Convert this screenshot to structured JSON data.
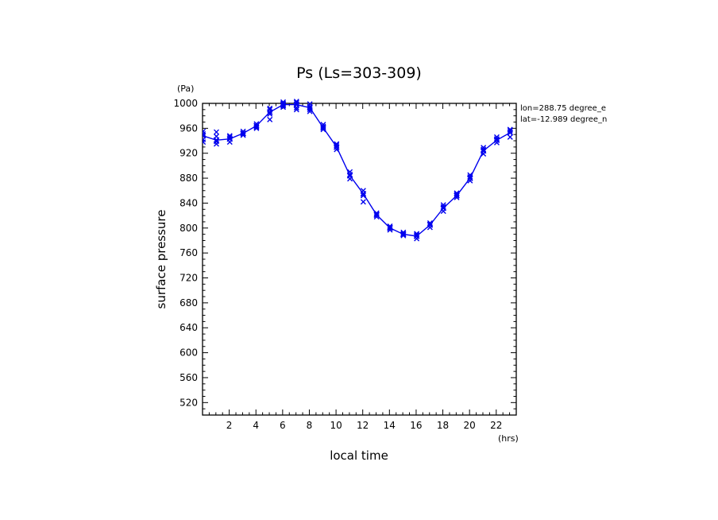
{
  "chart_data": {
    "type": "line",
    "title": "Ps (Ls=303-309)",
    "xlabel": "local time",
    "ylabel": "surface pressure",
    "x_unit": "(hrs)",
    "y_unit": "(Pa)",
    "annotations": [
      "lon=288.75 degree_e",
      "lat=-12.989 degree_n"
    ],
    "xlim": [
      0,
      23.5
    ],
    "ylim": [
      500,
      1000
    ],
    "x_ticks": [
      2,
      4,
      6,
      8,
      10,
      12,
      14,
      16,
      18,
      20,
      22
    ],
    "y_ticks": [
      520,
      560,
      600,
      640,
      680,
      720,
      760,
      800,
      840,
      880,
      920,
      960,
      1000
    ],
    "series": [
      {
        "name": "",
        "color": "#0000ee",
        "marker": "x",
        "x": [
          0.04,
          1.04,
          2.04,
          3.04,
          4.04,
          5.04,
          6.04,
          7.04,
          8.04,
          9.04,
          10.04,
          11.04,
          12.04,
          13.04,
          14.04,
          15.04,
          16.04,
          17.04,
          18.04,
          19.04,
          20.04,
          21.04,
          22.04,
          23.04
        ],
        "values": [
          948,
          941,
          943,
          952,
          964,
          986,
          998,
          998,
          993,
          961,
          930,
          884,
          855,
          821,
          800,
          790,
          787,
          805,
          832,
          852,
          880,
          924,
          941,
          953
        ]
      }
    ],
    "scatter": {
      "marker": "x",
      "color": "#0000ee",
      "points": [
        [
          0.04,
          948
        ],
        [
          0.04,
          942
        ],
        [
          0.04,
          955
        ],
        [
          0.04,
          951
        ],
        [
          0.04,
          938
        ],
        [
          1.04,
          941
        ],
        [
          1.04,
          935
        ],
        [
          1.04,
          947
        ],
        [
          1.04,
          954
        ],
        [
          1.04,
          939
        ],
        [
          2.04,
          943
        ],
        [
          2.04,
          938
        ],
        [
          2.04,
          948
        ],
        [
          2.04,
          946
        ],
        [
          3.04,
          952
        ],
        [
          3.04,
          949
        ],
        [
          3.04,
          955
        ],
        [
          3.04,
          951
        ],
        [
          4.04,
          964
        ],
        [
          4.04,
          960
        ],
        [
          4.04,
          967
        ],
        [
          4.04,
          962
        ],
        [
          5.04,
          986
        ],
        [
          5.04,
          990
        ],
        [
          5.04,
          974
        ],
        [
          5.04,
          983
        ],
        [
          5.04,
          992
        ],
        [
          6.04,
          998
        ],
        [
          6.04,
          1002
        ],
        [
          6.04,
          994
        ],
        [
          6.04,
          1000
        ],
        [
          6.04,
          996
        ],
        [
          7.04,
          998
        ],
        [
          7.04,
          1003
        ],
        [
          7.04,
          993
        ],
        [
          7.04,
          1001
        ],
        [
          7.04,
          990
        ],
        [
          8.04,
          993
        ],
        [
          8.04,
          999
        ],
        [
          8.04,
          987
        ],
        [
          8.04,
          995
        ],
        [
          8.04,
          990
        ],
        [
          9.04,
          961
        ],
        [
          9.04,
          966
        ],
        [
          9.04,
          958
        ],
        [
          9.04,
          963
        ],
        [
          10.04,
          930
        ],
        [
          10.04,
          935
        ],
        [
          10.04,
          926
        ],
        [
          10.04,
          933
        ],
        [
          11.04,
          884
        ],
        [
          11.04,
          890
        ],
        [
          11.04,
          879
        ],
        [
          11.04,
          886
        ],
        [
          12.04,
          855
        ],
        [
          12.04,
          860
        ],
        [
          12.04,
          842
        ],
        [
          12.04,
          852
        ],
        [
          13.04,
          821
        ],
        [
          13.04,
          824
        ],
        [
          13.04,
          818
        ],
        [
          13.04,
          822
        ],
        [
          14.04,
          800
        ],
        [
          14.04,
          803
        ],
        [
          14.04,
          797
        ],
        [
          14.04,
          801
        ],
        [
          15.04,
          790
        ],
        [
          15.04,
          793
        ],
        [
          15.04,
          788
        ],
        [
          15.04,
          791
        ],
        [
          16.04,
          787
        ],
        [
          16.04,
          791
        ],
        [
          16.04,
          783
        ],
        [
          16.04,
          789
        ],
        [
          17.04,
          805
        ],
        [
          17.04,
          808
        ],
        [
          17.04,
          801
        ],
        [
          17.04,
          806
        ],
        [
          18.04,
          832
        ],
        [
          18.04,
          837
        ],
        [
          18.04,
          827
        ],
        [
          18.04,
          834
        ],
        [
          19.04,
          852
        ],
        [
          19.04,
          856
        ],
        [
          19.04,
          849
        ],
        [
          19.04,
          854
        ],
        [
          20.04,
          880
        ],
        [
          20.04,
          885
        ],
        [
          20.04,
          876
        ],
        [
          20.04,
          882
        ],
        [
          21.04,
          924
        ],
        [
          21.04,
          929
        ],
        [
          21.04,
          919
        ],
        [
          21.04,
          926
        ],
        [
          22.04,
          941
        ],
        [
          22.04,
          946
        ],
        [
          22.04,
          937
        ],
        [
          22.04,
          943
        ],
        [
          23.04,
          953
        ],
        [
          23.04,
          958
        ],
        [
          23.04,
          946
        ],
        [
          23.04,
          956
        ]
      ]
    },
    "grid": false,
    "legend": "none"
  }
}
